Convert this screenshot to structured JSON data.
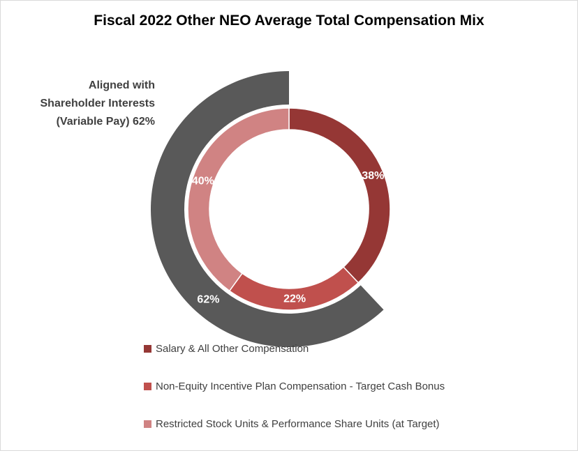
{
  "chart_data": {
    "type": "pie",
    "style": "nested-donut",
    "title": "Fiscal 2022 Other NEO Average Total Compensation Mix",
    "inner_ring": {
      "categories": [
        "Salary & All Other Compensation",
        "Non-Equity Incentive Plan Compensation - Target Cash Bonus",
        "Restricted Stock Units & Performance Share Units (at Target)"
      ],
      "values": [
        38,
        22,
        40
      ],
      "labels": [
        "38%",
        "22%",
        "40%"
      ],
      "colors": [
        "#953735",
        "#c0504d",
        "#d08383"
      ]
    },
    "outer_ring": {
      "name": "Aligned with Shareholder Interests (Variable Pay) 62%",
      "value": 62,
      "label": "62%",
      "color": "#595959"
    },
    "legend_position": "bottom"
  },
  "legend": [
    {
      "label": "Salary & All Other Compensation",
      "color": "#953735"
    },
    {
      "label": "Non-Equity Incentive Plan Compensation - Target Cash Bonus",
      "color": "#c0504d"
    },
    {
      "label": "Restricted Stock Units & Performance Share Units (at Target)",
      "color": "#d08383"
    }
  ]
}
